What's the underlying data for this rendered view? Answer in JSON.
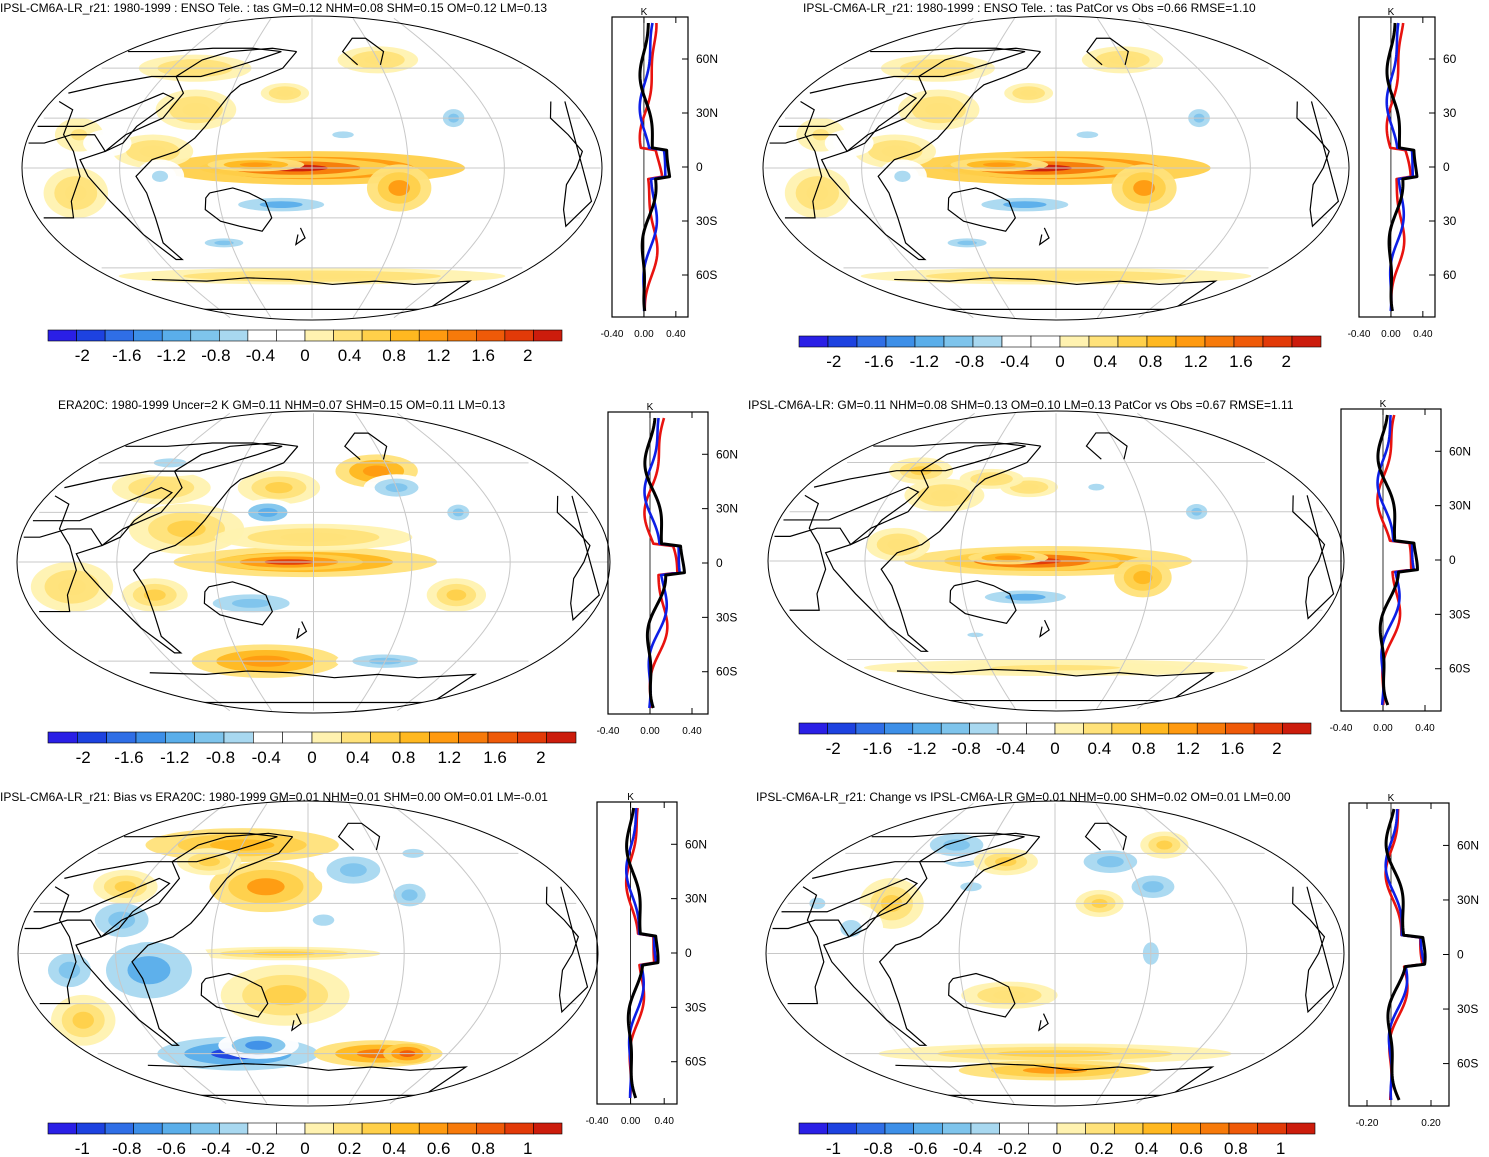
{
  "panels": [
    {
      "title": "IPSL-CM6A-LR_r21: 1980-1999 : ENSO Tele. : tas GM=0.12 NHM=0.08 SHM=0.15 OM=0.12 LM=0.13",
      "colorbar_labels": [
        "-2",
        "-1.6",
        "-1.2",
        "-0.8",
        "-0.4",
        "0",
        "0.4",
        "0.8",
        "1.2",
        "1.6",
        "2"
      ],
      "profile": {
        "unit": "K",
        "lat_labels": [
          "60N",
          "30N",
          "0",
          "30S",
          "60S"
        ],
        "x_tick_labels": [
          "-0.40",
          "0.00",
          "0.40"
        ]
      }
    },
    {
      "title": "IPSL-CM6A-LR_r21: 1980-1999 : ENSO Tele. : tas PatCor vs Obs =0.66 RMSE=1.10",
      "colorbar_labels": [
        "-2",
        "-1.6",
        "-1.2",
        "-0.8",
        "-0.4",
        "0",
        "0.4",
        "0.8",
        "1.2",
        "1.6",
        "2"
      ],
      "profile": {
        "unit": "K",
        "lat_labels": [
          "60",
          "30",
          "0",
          "30",
          "60"
        ],
        "x_tick_labels": [
          "-0.40",
          "0.00",
          "0.40"
        ]
      }
    },
    {
      "title": "ERA20C: 1980-1999 Uncer=2 K GM=0.11 NHM=0.07 SHM=0.15 OM=0.11 LM=0.13",
      "colorbar_labels": [
        "-2",
        "-1.6",
        "-1.2",
        "-0.8",
        "-0.4",
        "0",
        "0.4",
        "0.8",
        "1.2",
        "1.6",
        "2"
      ],
      "profile": {
        "unit": "K",
        "lat_labels": [
          "60N",
          "30N",
          "0",
          "30S",
          "60S"
        ],
        "x_tick_labels": [
          "-0.40",
          "0.00",
          "0.40"
        ]
      }
    },
    {
      "title": "IPSL-CM6A-LR: GM=0.11 NHM=0.08 SHM=0.13 OM=0.10 LM=0.13 PatCor vs Obs =0.67 RMSE=1.11",
      "colorbar_labels": [
        "-2",
        "-1.6",
        "-1.2",
        "-0.8",
        "-0.4",
        "0",
        "0.4",
        "0.8",
        "1.2",
        "1.6",
        "2"
      ],
      "profile": {
        "unit": "K",
        "lat_labels": [
          "60N",
          "30N",
          "0",
          "30S",
          "60S"
        ],
        "x_tick_labels": [
          "-0.40",
          "0.00",
          "0.40"
        ]
      }
    },
    {
      "title": "IPSL-CM6A-LR_r21: Bias vs ERA20C: 1980-1999 GM=0.01 NHM=0.01 SHM=0.00 OM=0.01 LM=-0.01",
      "colorbar_labels": [
        "-1",
        "-0.8",
        "-0.6",
        "-0.4",
        "-0.2",
        "0",
        "0.2",
        "0.4",
        "0.6",
        "0.8",
        "1"
      ],
      "profile": {
        "unit": "K",
        "lat_labels": [
          "60N",
          "30N",
          "0",
          "30S",
          "60S"
        ],
        "x_tick_labels": [
          "-0.40",
          "0.00",
          "0.40"
        ]
      }
    },
    {
      "title": "IPSL-CM6A-LR_r21: Change vs IPSL-CM6A-LR GM=0.01 NHM=0.00 SHM=0.02 OM=0.01 LM=0.00",
      "colorbar_labels": [
        "-1",
        "-0.8",
        "-0.6",
        "-0.4",
        "-0.2",
        "0",
        "0.2",
        "0.4",
        "0.6",
        "0.8",
        "1"
      ],
      "profile": {
        "unit": "K",
        "lat_labels": [
          "60N",
          "30N",
          "0",
          "30S",
          "60S"
        ],
        "x_tick_labels": [
          "-0.20",
          "0.20"
        ]
      }
    }
  ],
  "colors": {
    "colorbar": [
      "#2a1fe6",
      "#1d42e0",
      "#2f6ee6",
      "#3d8fe8",
      "#5aaeea",
      "#7ec4ec",
      "#a8d8f0",
      "#ffffff",
      "#ffffff",
      "#fff2b0",
      "#ffe27a",
      "#ffd04a",
      "#ffb820",
      "#ff9a10",
      "#f77a0a",
      "#ef5a08",
      "#e23a08",
      "#cc1c0c"
    ],
    "profile_lines": {
      "black": "#000000",
      "blue": "#0d1fe6",
      "red": "#e8130f"
    }
  }
}
